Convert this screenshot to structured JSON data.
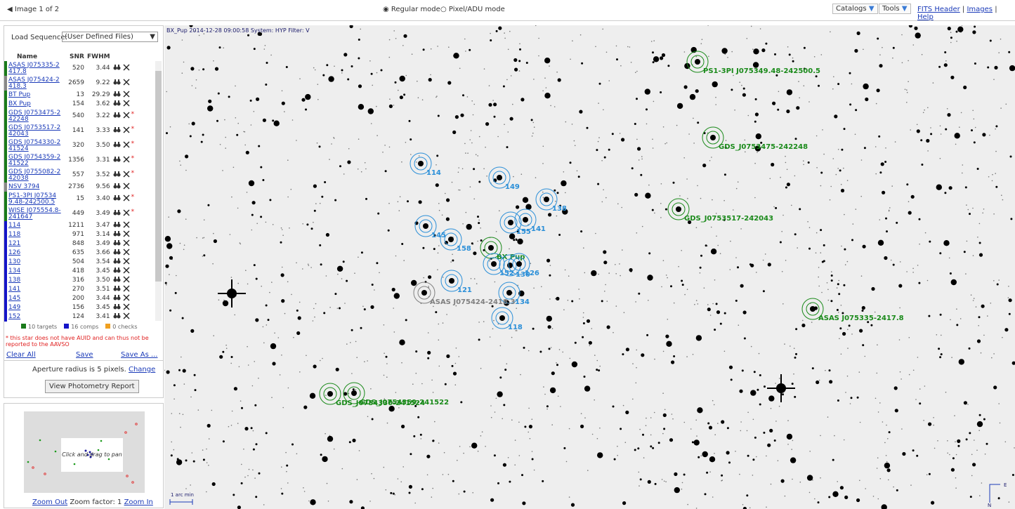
{
  "toolbar": {
    "image_nav": "Image 1 of 2",
    "modes": [
      "Regular mode",
      "Pixel/ADU mode"
    ],
    "menus": [
      "Catalogs",
      "Tools"
    ],
    "links": [
      "FITS Header",
      "Images",
      "Help"
    ]
  },
  "sidebar": {
    "load_label": "Load Sequence:",
    "load_value": "(User Defined Files)",
    "columns": [
      "Name",
      "SNR",
      "FWHM"
    ],
    "rows": [
      {
        "name": "ASAS J075335-2417.8",
        "snr": "520",
        "fwhm": "3.44",
        "color": "#1a7a1a"
      },
      {
        "name": "ASAS J075424-2418.3",
        "snr": "2659",
        "fwhm": "9.22",
        "color": "#888888"
      },
      {
        "name": "BT Pup",
        "snr": "13",
        "fwhm": "29.29",
        "color": "#1a7a1a"
      },
      {
        "name": "BX Pup",
        "snr": "154",
        "fwhm": "3.62",
        "color": "#1a7a1a"
      },
      {
        "name": "GDS J0753475-242248",
        "snr": "540",
        "fwhm": "3.22",
        "color": "#1a7a1a",
        "flag": "*"
      },
      {
        "name": "GDS J0753517-242043",
        "snr": "141",
        "fwhm": "3.33",
        "color": "#1a7a1a",
        "flag": "*"
      },
      {
        "name": "GDS J0754330-241524",
        "snr": "320",
        "fwhm": "3.50",
        "color": "#1a7a1a",
        "flag": "*"
      },
      {
        "name": "GDS J0754359-241522",
        "snr": "1356",
        "fwhm": "3.31",
        "color": "#1a7a1a",
        "flag": "*"
      },
      {
        "name": "GDS J0755082-242038",
        "snr": "557",
        "fwhm": "3.52",
        "color": "#1a7a1a",
        "flag": "*"
      },
      {
        "name": "NSV 3794",
        "snr": "2736",
        "fwhm": "9.56",
        "color": "#888888"
      },
      {
        "name": "PS1-3PI J075349.48-242500.5",
        "snr": "15",
        "fwhm": "3.40",
        "color": "#1a7a1a",
        "flag": "*"
      },
      {
        "name": "WISE J075554.8-241647",
        "snr": "449",
        "fwhm": "3.49",
        "color": "#1a7a1a",
        "flag": "*"
      },
      {
        "name": "114",
        "snr": "1211",
        "fwhm": "3.47",
        "color": "#1515c8"
      },
      {
        "name": "118",
        "snr": "971",
        "fwhm": "3.14",
        "color": "#1515c8"
      },
      {
        "name": "121",
        "snr": "848",
        "fwhm": "3.49",
        "color": "#1515c8"
      },
      {
        "name": "126",
        "snr": "635",
        "fwhm": "3.66",
        "color": "#1515c8"
      },
      {
        "name": "130",
        "snr": "504",
        "fwhm": "3.54",
        "color": "#1515c8"
      },
      {
        "name": "134",
        "snr": "418",
        "fwhm": "3.45",
        "color": "#1515c8"
      },
      {
        "name": "138",
        "snr": "316",
        "fwhm": "3.50",
        "color": "#1515c8"
      },
      {
        "name": "141",
        "snr": "270",
        "fwhm": "3.51",
        "color": "#1515c8"
      },
      {
        "name": "145",
        "snr": "200",
        "fwhm": "3.44",
        "color": "#1515c8"
      },
      {
        "name": "149",
        "snr": "156",
        "fwhm": "3.45",
        "color": "#1515c8"
      },
      {
        "name": "152",
        "snr": "124",
        "fwhm": "3.41",
        "color": "#1515c8"
      }
    ],
    "legend": [
      {
        "label": "10 targets",
        "color": "#1a7a1a"
      },
      {
        "label": "16 comps",
        "color": "#1515c8"
      },
      {
        "label": "0 checks",
        "color": "#f0a020"
      }
    ],
    "note": "* this star does not have AUID and can thus not be reported to the AAVSO",
    "actions": [
      "Clear All",
      "Save",
      "Save As ..."
    ],
    "aperture_text": "Aperture radius is 5 pixels.",
    "aperture_link": "Change",
    "report_button": "View Photometry Report",
    "minimap_hint": "Click and drag to pan",
    "zoom_out": "Zoom Out",
    "zoom_factor": "Zoom factor: 1",
    "zoom_in": "Zoom In"
  },
  "image": {
    "header": "BX_Pup 2014-12-28 09:00:58 System: HYP Filter: V",
    "scale": "1 arc min",
    "compass_e": "E",
    "compass_n": "N",
    "annotations": [
      {
        "label": "114",
        "color": "#2b8fd8"
      },
      {
        "label": "149",
        "color": "#2b8fd8"
      },
      {
        "label": "138",
        "color": "#2b8fd8"
      },
      {
        "label": "145",
        "color": "#2b8fd8"
      },
      {
        "label": "158",
        "color": "#2b8fd8"
      },
      {
        "label": "155",
        "color": "#2b8fd8"
      },
      {
        "label": "141",
        "color": "#2b8fd8"
      },
      {
        "label": "BX Pup",
        "color": "#1a8a1a"
      },
      {
        "label": "152",
        "color": "#2b8fd8"
      },
      {
        "label": "130",
        "color": "#2b8fd8"
      },
      {
        "label": "126",
        "color": "#2b8fd8"
      },
      {
        "label": "121",
        "color": "#2b8fd8"
      },
      {
        "label": "134",
        "color": "#2b8fd8"
      },
      {
        "label": "ASAS J075424-2418.3",
        "color": "#808080"
      },
      {
        "label": "118",
        "color": "#2b8fd8"
      },
      {
        "label": "PS1-3PI J075349.48-242500.5",
        "color": "#1a8a1a"
      },
      {
        "label": "GDS_J0753475-242248",
        "color": "#1a8a1a"
      },
      {
        "label": "GDS_J0753517-242043",
        "color": "#1a8a1a"
      },
      {
        "label": "ASAS J075335-2417.8",
        "color": "#1a8a1a"
      },
      {
        "label": "GDS_J0754330-241524",
        "color": "#1a8a1a"
      },
      {
        "label": "GDS_J0754359-241522",
        "color": "#1a8a1a"
      }
    ]
  }
}
